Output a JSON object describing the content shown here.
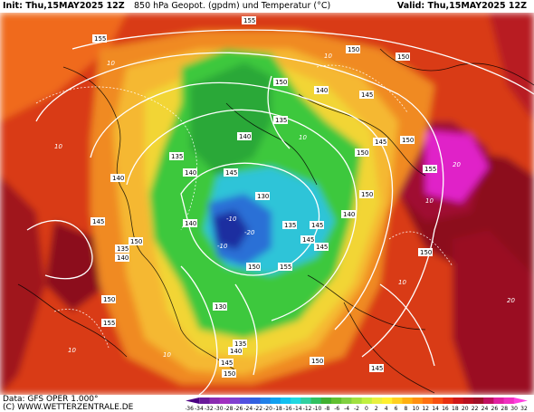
{
  "header": {
    "init": "Init: Thu,15MAY2025 12Z",
    "title": "850 hPa Geopot. (gpdm) und Temperatur (°C)",
    "valid": "Valid: Thu,15MAY2025 12Z"
  },
  "footer": {
    "data_source": "Data: GFS OPER 1.000°",
    "website": "(C) WWW.WETTERZENTRALE.DE"
  },
  "colors": {
    "very_hot": "#8c0a1e",
    "hot": "#d93a14",
    "warm": "#f06a1e",
    "mild": "#f59a2a",
    "yellow": "#f2d534",
    "green": "#3cc83c",
    "cyan": "#2ec4d8",
    "blue": "#2b6fd6",
    "navy": "#1a2fa0",
    "magenta": "#e020c8",
    "contour": "#ffffff",
    "coast": "#000000"
  },
  "geopotential_labels": [
    "155",
    "155",
    "150",
    "140",
    "145",
    "135",
    "140",
    "145",
    "135",
    "140",
    "145",
    "140",
    "150",
    "130",
    "135",
    "145",
    "140",
    "145",
    "150",
    "140",
    "145",
    "150",
    "135",
    "140",
    "150",
    "155",
    "150",
    "155",
    "150",
    "130",
    "135",
    "140",
    "145",
    "150",
    "145",
    "150",
    "155",
    "150",
    "150",
    "145",
    "150"
  ],
  "temperature_labels": [
    "10",
    "10",
    "10",
    "-10",
    "-10",
    "10",
    "10",
    "10",
    "20",
    "20",
    "-20",
    "10",
    "10"
  ],
  "color_scale": {
    "ticks": [
      "-36",
      "-34",
      "-32",
      "-30",
      "-28",
      "-26",
      "-24",
      "-22",
      "-20",
      "-18",
      "-16",
      "-14",
      "-12",
      "-10",
      "-8",
      "-6",
      "-4",
      "-2",
      "0",
      "2",
      "4",
      "6",
      "8",
      "10",
      "12",
      "14",
      "16",
      "18",
      "20",
      "22",
      "24",
      "26",
      "28",
      "30",
      "32"
    ],
    "colors": [
      "#4b0082",
      "#6a1a9a",
      "#8a2bb0",
      "#a030c0",
      "#8040d0",
      "#5050e0",
      "#3060e0",
      "#2080e8",
      "#10a0f0",
      "#10c0f0",
      "#20d8e0",
      "#30d0a0",
      "#30c060",
      "#40b030",
      "#60c030",
      "#80d040",
      "#a0e040",
      "#c0f040",
      "#e8f040",
      "#fff030",
      "#ffd020",
      "#ffb010",
      "#ff9010",
      "#ff7010",
      "#f85010",
      "#e83010",
      "#d01818",
      "#b81020",
      "#a01028",
      "#c01060",
      "#e020a0",
      "#f030c0",
      "#ff40e0"
    ]
  }
}
